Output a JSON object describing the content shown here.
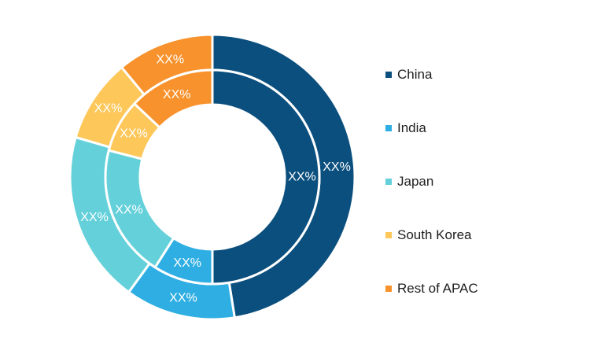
{
  "chart_data": {
    "type": "pie",
    "subtype": "nested-donut",
    "categories": [
      "China",
      "India",
      "Japan",
      "South Korea",
      "Rest of APAC"
    ],
    "colors": [
      "#0b4f7e",
      "#2eaee3",
      "#63d0da",
      "#fdc75a",
      "#f7922c"
    ],
    "series": [
      {
        "ring": "outer",
        "values": [
          47.5,
          12.5,
          19.5,
          9.5,
          11.0
        ],
        "labels": [
          "XX%",
          "XX%",
          "XX%",
          "XX%",
          "XX%"
        ]
      },
      {
        "ring": "inner",
        "values": [
          50.0,
          9.0,
          20.0,
          8.0,
          13.0
        ],
        "labels": [
          "XX%",
          "XX%",
          "XX%",
          "XX%",
          "XX%"
        ]
      }
    ],
    "legend": {
      "position": "right",
      "entries": [
        "China",
        "India",
        "Japan",
        "South Korea",
        "Rest of APAC"
      ]
    }
  }
}
